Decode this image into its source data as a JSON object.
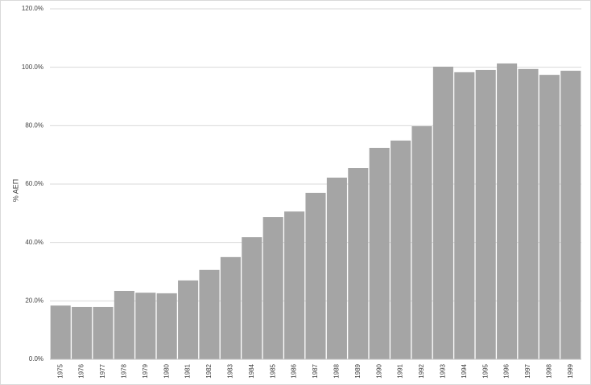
{
  "chart_data": {
    "type": "bar",
    "y_label": "% ΑΕΠ",
    "categories": [
      "1975",
      "1976",
      "1977",
      "1978",
      "1979",
      "1980",
      "1981",
      "1982",
      "1983",
      "1984",
      "1985",
      "1986",
      "1987",
      "1988",
      "1989",
      "1990",
      "1991",
      "1992",
      "1993",
      "1994",
      "1995",
      "1996",
      "1997",
      "1998",
      "1999"
    ],
    "values": [
      18.4,
      17.9,
      17.9,
      23.4,
      22.8,
      22.6,
      27.0,
      30.6,
      35.0,
      41.8,
      48.7,
      50.6,
      57.0,
      62.2,
      65.5,
      72.4,
      74.9,
      79.8,
      100.2,
      98.3,
      99.1,
      101.3,
      99.4,
      97.4,
      98.8
    ],
    "color": "#a5a5a5",
    "ylim": [
      0,
      120
    ],
    "yticks": [
      {
        "value": 0,
        "label": "0.0%"
      },
      {
        "value": 20,
        "label": "20.0%"
      },
      {
        "value": 40,
        "label": "40.0%"
      },
      {
        "value": 60,
        "label": "60.0%"
      },
      {
        "value": 80,
        "label": "80.0%"
      },
      {
        "value": 100,
        "label": "100.0%"
      },
      {
        "value": 120,
        "label": "120.0%"
      }
    ],
    "grid": true
  }
}
